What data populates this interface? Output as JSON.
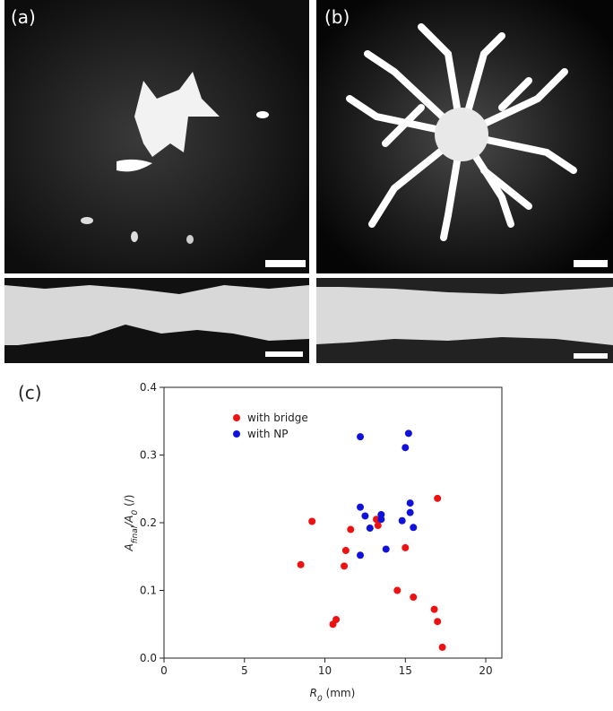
{
  "panels": [
    "(a)",
    "(b)",
    "(c)"
  ],
  "chart_data": {
    "type": "scatter",
    "x_label": [
      "R",
      "0",
      " (mm)"
    ],
    "y_label": [
      "A",
      "final",
      "/A",
      "0",
      " (/)"
    ],
    "xlim": [
      0,
      21
    ],
    "ylim": [
      0,
      0.4
    ],
    "xticks": [
      0,
      5,
      10,
      15,
      20
    ],
    "yticks": [
      {
        "value": 0,
        "label": "0.0"
      },
      0.1,
      0.2,
      0.3,
      0.4
    ],
    "legend": "upper left",
    "series": [
      {
        "name": "with bridge",
        "color": "#ee1111",
        "x": [
          8.5,
          9.2,
          10.5,
          10.7,
          11.2,
          11.3,
          11.6,
          13.2,
          13.3,
          14.5,
          15.0,
          15.5,
          16.8,
          17.0,
          17.0,
          17.3
        ],
        "values": [
          0.138,
          0.202,
          0.05,
          0.057,
          0.136,
          0.159,
          0.19,
          0.205,
          0.196,
          0.1,
          0.163,
          0.09,
          0.072,
          0.236,
          0.054,
          0.016
        ]
      },
      {
        "name": "with NP",
        "color": "#1111dd",
        "x": [
          12.2,
          12.2,
          12.2,
          12.5,
          12.8,
          13.5,
          13.5,
          13.8,
          14.8,
          15.0,
          15.2,
          15.3,
          15.3,
          15.5
        ],
        "values": [
          0.327,
          0.223,
          0.152,
          0.21,
          0.192,
          0.205,
          0.212,
          0.161,
          0.203,
          0.311,
          0.332,
          0.229,
          0.215,
          0.193
        ]
      }
    ]
  }
}
